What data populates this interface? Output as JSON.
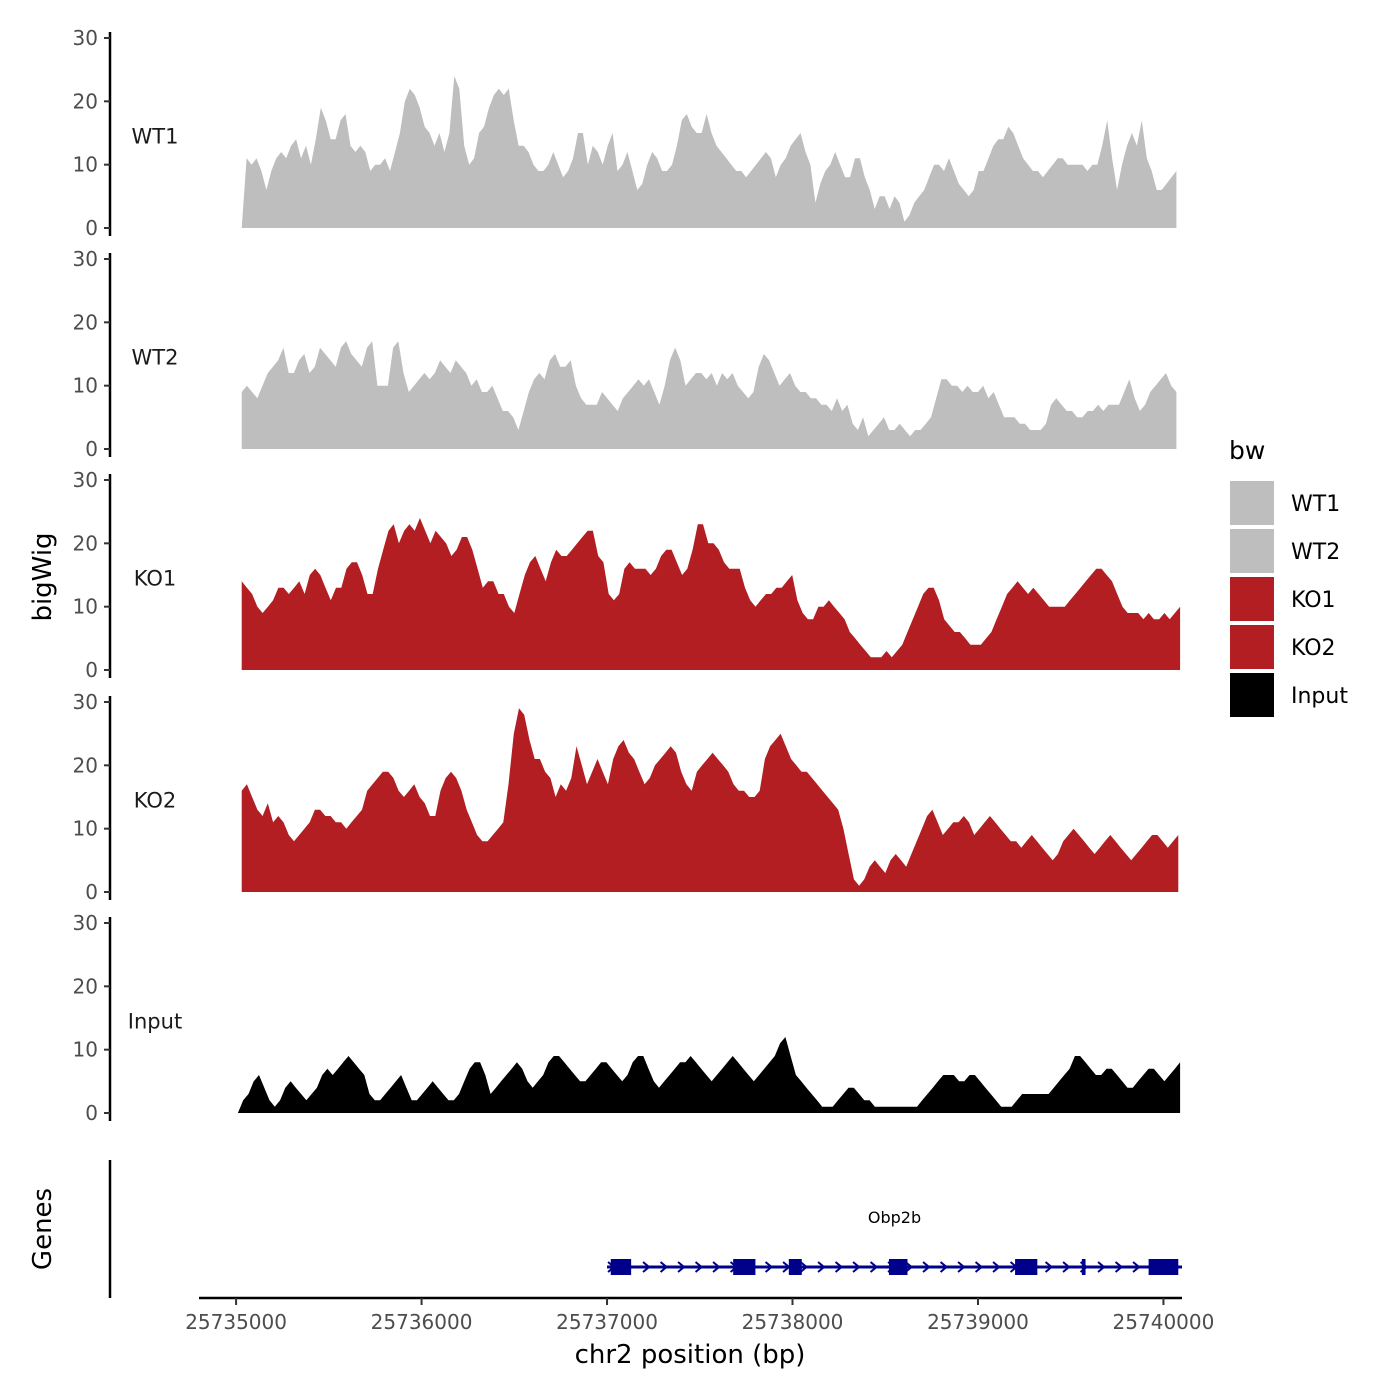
{
  "chart_data": {
    "type": "area",
    "title": "",
    "xlabel": "chr2 position (bp)",
    "ylabel": "bigWig",
    "genes_label": "Genes",
    "xlim": [
      25734800,
      25740100
    ],
    "ylim": [
      0,
      30
    ],
    "x_ticks": [
      25735000,
      25736000,
      25737000,
      25738000,
      25739000,
      25740000
    ],
    "x_tick_labels": [
      "25735000",
      "25736000",
      "25737000",
      "25738000",
      "25739000",
      "25740000"
    ],
    "y_ticks": [
      0,
      10,
      20,
      30
    ],
    "y_tick_labels": [
      "0",
      "10",
      "20",
      "30"
    ],
    "legend": {
      "title": "bw",
      "position": "right",
      "entries": [
        {
          "label": "WT1",
          "color": "#bebebe"
        },
        {
          "label": "WT2",
          "color": "#bebebe"
        },
        {
          "label": "KO1",
          "color": "#b21e21"
        },
        {
          "label": "KO2",
          "color": "#b21e21"
        },
        {
          "label": "Input",
          "color": "#000000"
        }
      ]
    },
    "series": [
      {
        "name": "WT1",
        "color": "#bebebe",
        "x_start": 25735030,
        "x_end": 25740070,
        "values": [
          0,
          11,
          10,
          11,
          9,
          6,
          9,
          11,
          12,
          11,
          13,
          14,
          11,
          13,
          10,
          14,
          19,
          17,
          14,
          14,
          17,
          18,
          13,
          12,
          13,
          12,
          9,
          10,
          10,
          11,
          9,
          12,
          15,
          20,
          22,
          21,
          19,
          16,
          15,
          13,
          15,
          12,
          15,
          24,
          22,
          13,
          10,
          11,
          15,
          16,
          19,
          21,
          22,
          21,
          22,
          17,
          13,
          13,
          12,
          10,
          9,
          9,
          10,
          12,
          10,
          8,
          9,
          11,
          15,
          15,
          10,
          13,
          12,
          10,
          13,
          15,
          9,
          10,
          12,
          9,
          6,
          7,
          10,
          12,
          11,
          9,
          9,
          10,
          13,
          17,
          18,
          16,
          15,
          15,
          18,
          15,
          13,
          12,
          11,
          10,
          9,
          9,
          8,
          9,
          10,
          11,
          12,
          11,
          8,
          10,
          11,
          13,
          14,
          15,
          12,
          10,
          4,
          7,
          9,
          10,
          12,
          10,
          8,
          8,
          11,
          11,
          8,
          6,
          3,
          5,
          5,
          3,
          5,
          4,
          1,
          2,
          4,
          5,
          6,
          8,
          10,
          10,
          9,
          11,
          9,
          7,
          6,
          5,
          6,
          9,
          9,
          11,
          13,
          14,
          14,
          16,
          15,
          13,
          11,
          10,
          9,
          9,
          8,
          9,
          10,
          11,
          11,
          10,
          10,
          10,
          10,
          9,
          10,
          10,
          13,
          17,
          11,
          6,
          10,
          13,
          15,
          13,
          17,
          11,
          9,
          6,
          6,
          7,
          8,
          9
        ]
      },
      {
        "name": "WT2",
        "color": "#bebebe",
        "x_start": 25735030,
        "x_end": 25740070,
        "values": [
          9,
          10,
          9,
          8,
          10,
          12,
          13,
          14,
          16,
          12,
          12,
          14,
          15,
          12,
          13,
          16,
          15,
          14,
          13,
          16,
          17,
          15,
          14,
          13,
          16,
          17,
          10,
          10,
          10,
          16,
          17,
          12,
          9,
          10,
          11,
          12,
          11,
          12,
          14,
          13,
          12,
          14,
          13,
          12,
          10,
          11,
          9,
          9,
          10,
          8,
          6,
          6,
          5,
          3,
          6,
          9,
          11,
          12,
          11,
          14,
          15,
          13,
          13,
          14,
          10,
          8,
          7,
          7,
          7,
          9,
          8,
          7,
          6,
          8,
          9,
          10,
          11,
          10,
          11,
          9,
          7,
          10,
          14,
          16,
          14,
          10,
          11,
          12,
          12,
          11,
          12,
          10,
          12,
          11,
          12,
          10,
          9,
          8,
          9,
          13,
          15,
          14,
          12,
          10,
          11,
          12,
          10,
          9,
          9,
          8,
          8,
          7,
          7,
          6,
          8,
          6,
          7,
          4,
          3,
          5,
          2,
          3,
          4,
          5,
          3,
          3,
          4,
          3,
          2,
          3,
          3,
          4,
          5,
          8,
          11,
          11,
          10,
          10,
          9,
          10,
          9,
          9,
          10,
          8,
          9,
          7,
          5,
          5,
          5,
          4,
          4,
          3,
          3,
          3,
          4,
          7,
          8,
          7,
          6,
          6,
          5,
          5,
          6,
          6,
          7,
          6,
          7,
          7,
          7,
          9,
          11,
          8,
          6,
          7,
          9,
          10,
          11,
          12,
          10,
          9
        ]
      },
      {
        "name": "KO1",
        "color": "#b21e21",
        "x_start": 25735030,
        "x_end": 25740090,
        "values": [
          14,
          13,
          12,
          10,
          9,
          10,
          11,
          13,
          13,
          12,
          13,
          14,
          12,
          15,
          16,
          15,
          13,
          11,
          13,
          13,
          16,
          17,
          17,
          15,
          12,
          12,
          16,
          19,
          22,
          23,
          20,
          22,
          23,
          22,
          24,
          22,
          20,
          22,
          21,
          20,
          18,
          19,
          21,
          21,
          19,
          16,
          13,
          14,
          14,
          12,
          12,
          10,
          9,
          12,
          15,
          17,
          18,
          16,
          14,
          17,
          19,
          18,
          18,
          19,
          20,
          21,
          22,
          22,
          18,
          17,
          12,
          11,
          12,
          16,
          17,
          16,
          16,
          16,
          15,
          16,
          18,
          19,
          19,
          17,
          15,
          16,
          19,
          23,
          23,
          20,
          20,
          19,
          17,
          16,
          16,
          16,
          13,
          11,
          10,
          11,
          12,
          12,
          13,
          13,
          14,
          15,
          11,
          9,
          8,
          8,
          10,
          10,
          11,
          10,
          9,
          8,
          6,
          5,
          4,
          3,
          2,
          2,
          2,
          3,
          2,
          3,
          4,
          6,
          8,
          10,
          12,
          13,
          13,
          11,
          8,
          7,
          6,
          6,
          5,
          4,
          4,
          4,
          5,
          6,
          8,
          10,
          12,
          13,
          14,
          13,
          12,
          13,
          12,
          11,
          10,
          10,
          10,
          10,
          11,
          12,
          13,
          14,
          15,
          16,
          16,
          15,
          14,
          12,
          10,
          9,
          9,
          9,
          8,
          9,
          8,
          8,
          9,
          8,
          9,
          10
        ]
      },
      {
        "name": "KO2",
        "color": "#b21e21",
        "x_start": 25735030,
        "x_end": 25740080,
        "values": [
          16,
          17,
          15,
          13,
          12,
          14,
          11,
          12,
          11,
          9,
          8,
          9,
          10,
          11,
          13,
          13,
          12,
          12,
          11,
          11,
          10,
          11,
          12,
          13,
          16,
          17,
          18,
          19,
          19,
          18,
          16,
          15,
          16,
          17,
          15,
          14,
          12,
          12,
          16,
          18,
          19,
          18,
          16,
          13,
          11,
          9,
          8,
          8,
          9,
          10,
          11,
          17,
          25,
          29,
          28,
          24,
          21,
          21,
          19,
          18,
          15,
          17,
          16,
          18,
          23,
          20,
          17,
          19,
          21,
          19,
          17,
          21,
          23,
          24,
          22,
          21,
          19,
          17,
          18,
          20,
          21,
          22,
          23,
          22,
          19,
          17,
          16,
          19,
          20,
          21,
          22,
          21,
          20,
          19,
          17,
          16,
          16,
          15,
          15,
          16,
          21,
          23,
          24,
          25,
          23,
          21,
          20,
          19,
          19,
          18,
          17,
          16,
          15,
          14,
          13,
          10,
          6,
          2,
          1,
          2,
          4,
          5,
          4,
          3,
          5,
          6,
          5,
          4,
          6,
          8,
          10,
          12,
          13,
          11,
          9,
          10,
          11,
          11,
          12,
          11,
          9,
          10,
          11,
          12,
          11,
          10,
          9,
          8,
          8,
          7,
          8,
          9,
          8,
          7,
          6,
          5,
          6,
          8,
          9,
          10,
          9,
          8,
          7,
          6,
          7,
          8,
          9,
          8,
          7,
          6,
          5,
          6,
          7,
          8,
          9,
          9,
          8,
          7,
          8,
          9
        ]
      },
      {
        "name": "Input",
        "color": "#000000",
        "x_start": 25735010,
        "x_end": 25740090,
        "values": [
          0,
          2,
          3,
          5,
          6,
          4,
          2,
          1,
          2,
          4,
          5,
          4,
          3,
          2,
          3,
          4,
          6,
          7,
          6,
          7,
          8,
          9,
          8,
          7,
          6,
          3,
          2,
          2,
          3,
          4,
          5,
          6,
          4,
          2,
          2,
          3,
          4,
          5,
          4,
          3,
          2,
          2,
          3,
          5,
          7,
          8,
          8,
          6,
          3,
          4,
          5,
          6,
          7,
          8,
          7,
          5,
          4,
          5,
          6,
          8,
          9,
          9,
          8,
          7,
          6,
          5,
          5,
          6,
          7,
          8,
          8,
          7,
          6,
          5,
          6,
          8,
          9,
          9,
          7,
          5,
          4,
          5,
          6,
          7,
          8,
          8,
          9,
          8,
          7,
          6,
          5,
          6,
          7,
          8,
          9,
          8,
          7,
          6,
          5,
          6,
          7,
          8,
          9,
          11,
          12,
          9,
          6,
          5,
          4,
          3,
          2,
          1,
          1,
          1,
          2,
          3,
          4,
          4,
          3,
          2,
          2,
          1,
          1,
          1,
          1,
          1,
          1,
          1,
          1,
          1,
          2,
          3,
          4,
          5,
          6,
          6,
          6,
          5,
          5,
          6,
          6,
          5,
          4,
          3,
          2,
          1,
          1,
          1,
          2,
          3,
          3,
          3,
          3,
          3,
          3,
          4,
          5,
          6,
          7,
          9,
          9,
          8,
          7,
          6,
          6,
          7,
          7,
          6,
          5,
          4,
          4,
          5,
          6,
          7,
          7,
          6,
          5,
          6,
          7,
          8
        ]
      }
    ],
    "genes": [
      {
        "name": "Obp2b",
        "start": 25737000,
        "end": 25740100,
        "strand": "+",
        "color": "#00008b",
        "exons": [
          [
            25737020,
            25737130
          ],
          [
            25737680,
            25737800
          ],
          [
            25737980,
            25738050
          ],
          [
            25738520,
            25738620
          ],
          [
            25739200,
            25739320
          ],
          [
            25739560,
            25739580
          ],
          [
            25739920,
            25740080
          ]
        ]
      }
    ]
  }
}
